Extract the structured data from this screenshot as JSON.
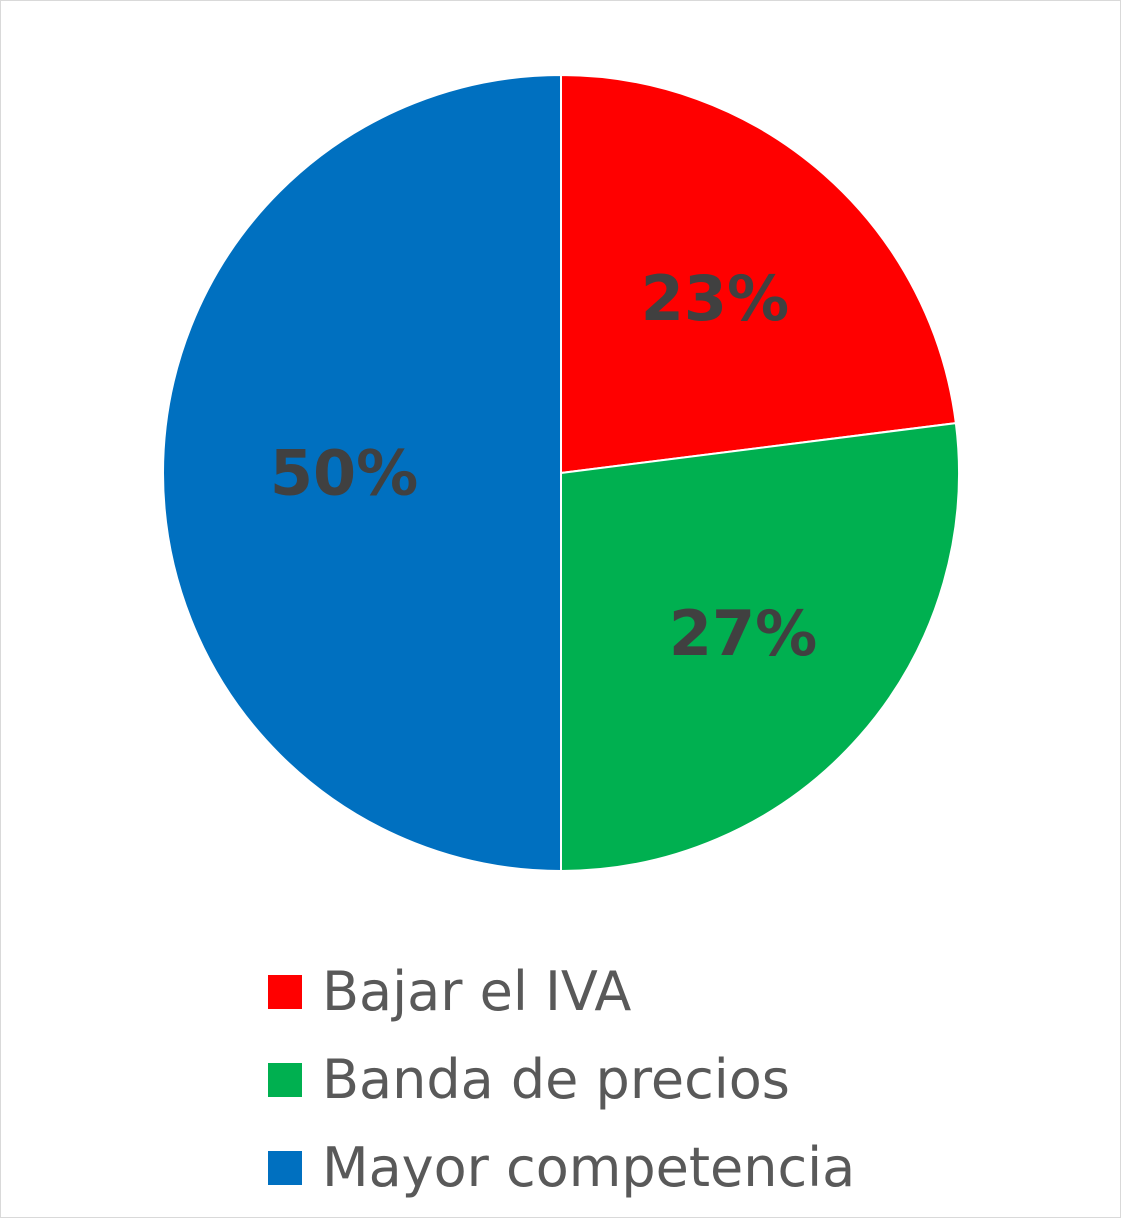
{
  "chart_data": {
    "type": "pie",
    "title": "",
    "categories": [
      "Bajar el IVA",
      "Banda de precios",
      "Mayor competencia"
    ],
    "values": [
      23,
      27,
      50
    ],
    "labels": [
      "23%",
      "27%",
      "50%"
    ],
    "colors": [
      "#ff0000",
      "#00b050",
      "#0070c0"
    ],
    "start_angle_deg": 0,
    "direction": "clockwise",
    "legend_position": "bottom"
  }
}
